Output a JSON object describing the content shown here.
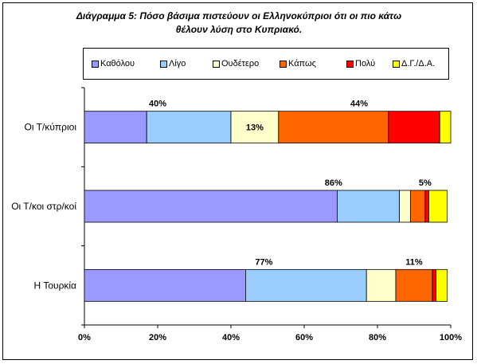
{
  "chart_data": {
    "type": "bar",
    "orientation": "horizontal",
    "stacked": true,
    "title_lines": [
      "Διάγραμμα 5: Πόσο βάσιμα πιστεύουν οι Ελληνοκύπριοι ότι οι πιο κάτω",
      "θέλουν λύση στο Κυπριακό."
    ],
    "categories": [
      "Οι Τ/κύπριοι",
      "Οι Τ/κοι στρ/κοί",
      "Η Τουρκία"
    ],
    "series": [
      {
        "name": "Καθόλου",
        "color": "#9999FF",
        "values": [
          17,
          69,
          44
        ]
      },
      {
        "name": "Λίγο",
        "color": "#99CCFF",
        "values": [
          23,
          17,
          33
        ]
      },
      {
        "name": "Ουδέτερο",
        "color": "#FFFFCC",
        "values": [
          13,
          3,
          8
        ]
      },
      {
        "name": "Κάπως",
        "color": "#FF6600",
        "values": [
          30,
          4,
          10
        ]
      },
      {
        "name": "Πολύ",
        "color": "#FF0000",
        "values": [
          14,
          1,
          1
        ]
      },
      {
        "name": "Δ.Γ./Δ.Α.",
        "color": "#FFFF00",
        "values": [
          3,
          5,
          3
        ]
      }
    ],
    "annotations": [
      {
        "category": "Οι Τ/κύπριοι",
        "text": "40%",
        "anchor_value": 20,
        "position": "above"
      },
      {
        "category": "Οι Τ/κύπριοι",
        "text": "13%",
        "anchor_value": 46.5,
        "position": "inside"
      },
      {
        "category": "Οι Τ/κύπριοι",
        "text": "44%",
        "anchor_value": 75,
        "position": "above"
      },
      {
        "category": "Οι Τ/κοι στρ/κοί",
        "text": "86%",
        "anchor_value": 68,
        "position": "above"
      },
      {
        "category": "Οι Τ/κοι στρ/κοί",
        "text": "5%",
        "anchor_value": 93,
        "position": "above"
      },
      {
        "category": "Η Τουρκία",
        "text": "77%",
        "anchor_value": 49,
        "position": "above"
      },
      {
        "category": "Η Τουρκία",
        "text": "11%",
        "anchor_value": 90,
        "position": "above"
      }
    ],
    "x_ticks": [
      "0%",
      "20%",
      "40%",
      "60%",
      "80%",
      "100%"
    ],
    "xlim": [
      0,
      100
    ],
    "xlabel": "",
    "ylabel": "",
    "grid": false,
    "legend_position": "top"
  }
}
